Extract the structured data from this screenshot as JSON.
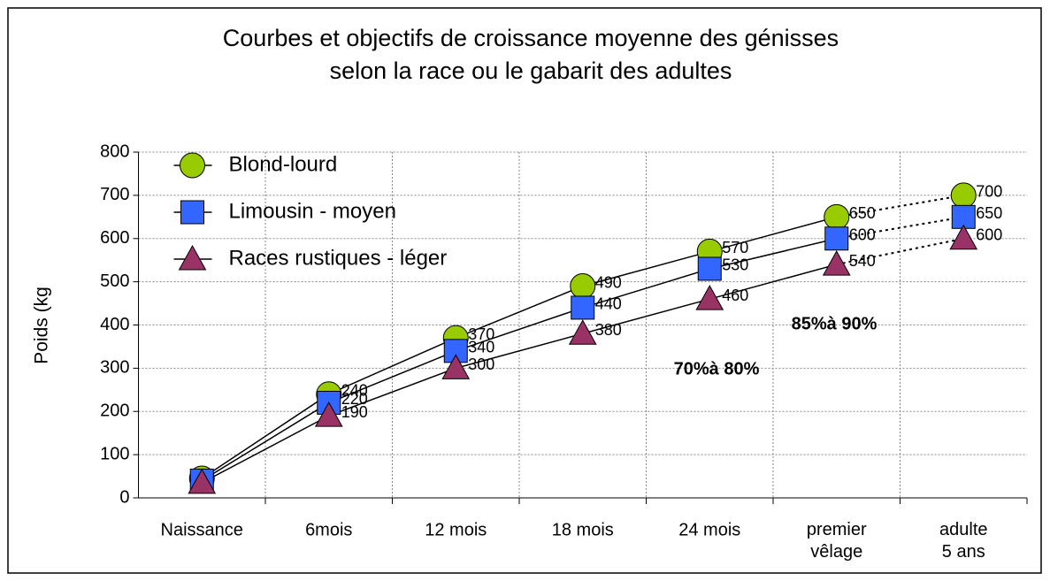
{
  "chart_data": {
    "type": "line",
    "title": [
      "Courbes et objectifs de croissance moyenne des génisses",
      "selon la race ou le gabarit des adultes"
    ],
    "y_label": "Poids (kg",
    "categories": [
      "Naissance",
      "6mois",
      "12 mois",
      "18 mois",
      "24 mois",
      "premier\nvêlage",
      "adulte\n5 ans"
    ],
    "series": [
      {
        "name": "Blond-lourd",
        "color": "#99cc00",
        "marker": "circle",
        "values": [
          45,
          240,
          370,
          490,
          570,
          650,
          700
        ],
        "value_labels": [
          null,
          "240",
          "370",
          "490",
          "570",
          "650",
          "700"
        ]
      },
      {
        "name": "Limousin - moyen",
        "color": "#3366ff",
        "marker": "square",
        "values": [
          40,
          220,
          340,
          440,
          530,
          600,
          650
        ],
        "value_labels": [
          null,
          "220",
          "340",
          "440",
          "530",
          "600",
          "650"
        ]
      },
      {
        "name": "Races rustiques - léger",
        "color": "#993366",
        "marker": "triangle",
        "values": [
          35,
          190,
          300,
          380,
          460,
          540,
          600
        ],
        "value_labels": [
          null,
          "190",
          "300",
          "380",
          "460",
          "540",
          "600"
        ]
      }
    ],
    "ylim": [
      0,
      800
    ],
    "yticks": [
      0,
      100,
      200,
      300,
      400,
      500,
      600,
      700,
      800
    ],
    "grid": true,
    "legend": "upper left",
    "dotted_last_segment": true,
    "annotations": [
      "70%à 80%",
      "85%à 90%"
    ]
  }
}
